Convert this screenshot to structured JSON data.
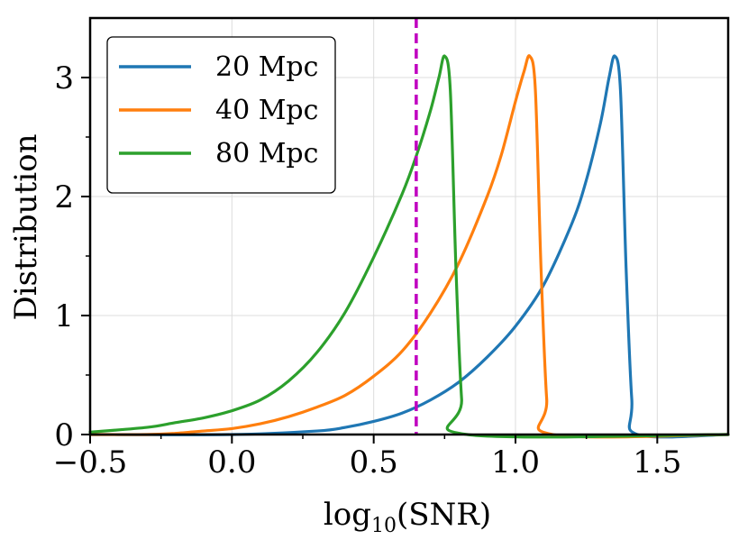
{
  "chart_data": {
    "type": "line",
    "xlabel": "log10(SNR)",
    "xlabel_base": "log",
    "xlabel_sub": "10",
    "xlabel_rest": "(SNR)",
    "ylabel": "Distribution",
    "xlim": [
      -0.5,
      1.75
    ],
    "ylim": [
      0,
      3.5
    ],
    "xticks": [
      -0.5,
      0.0,
      0.5,
      1.0,
      1.5
    ],
    "xtick_labels": [
      "−0.5",
      "0.0",
      "0.5",
      "1.0",
      "1.5"
    ],
    "yticks": [
      0,
      1,
      2,
      3
    ],
    "ytick_labels": [
      "0",
      "1",
      "2",
      "3"
    ],
    "x_minor_ticks": [
      -0.25,
      0.25,
      0.75,
      1.25
    ],
    "y_minor_ticks": [
      0.5,
      1.5,
      2.5
    ],
    "grid": true,
    "legend_position": "top-left",
    "threshold": {
      "x": 0.65,
      "color": "#c000c0",
      "style": "dashed"
    },
    "series": [
      {
        "name": "20 Mpc",
        "color": "#1f77b4",
        "x": [
          -0.5,
          0.0,
          0.3,
          0.4,
          0.5,
          0.6,
          0.7,
          0.8,
          0.9,
          1.0,
          1.1,
          1.2,
          1.25,
          1.3,
          1.33,
          1.35,
          1.37,
          1.39,
          1.41,
          1.43,
          1.75
        ],
        "y": [
          0.0,
          0.0,
          0.03,
          0.06,
          0.11,
          0.18,
          0.29,
          0.44,
          0.65,
          0.91,
          1.26,
          1.78,
          2.14,
          2.62,
          3.0,
          3.18,
          2.9,
          1.4,
          0.3,
          0.0,
          0.0
        ]
      },
      {
        "name": "40 Mpc",
        "color": "#ff7f0e",
        "x": [
          -0.5,
          -0.3,
          -0.2,
          -0.1,
          0.0,
          0.1,
          0.2,
          0.3,
          0.4,
          0.5,
          0.6,
          0.7,
          0.8,
          0.9,
          0.95,
          1.0,
          1.03,
          1.05,
          1.07,
          1.09,
          1.11,
          1.13,
          1.75
        ],
        "y": [
          0.0,
          0.0,
          0.01,
          0.03,
          0.05,
          0.09,
          0.15,
          0.23,
          0.33,
          0.49,
          0.7,
          1.02,
          1.44,
          2.0,
          2.35,
          2.8,
          3.05,
          3.18,
          2.9,
          1.4,
          0.3,
          0.0,
          0.0
        ]
      },
      {
        "name": "80 Mpc",
        "color": "#2ca02c",
        "x": [
          -0.5,
          -0.3,
          -0.2,
          -0.1,
          0.0,
          0.1,
          0.2,
          0.3,
          0.4,
          0.5,
          0.6,
          0.65,
          0.7,
          0.73,
          0.75,
          0.77,
          0.79,
          0.81,
          0.83,
          1.75
        ],
        "y": [
          0.02,
          0.06,
          0.1,
          0.14,
          0.2,
          0.29,
          0.45,
          0.69,
          1.03,
          1.49,
          2.02,
          2.34,
          2.72,
          3.0,
          3.18,
          2.9,
          1.4,
          0.3,
          0.0,
          0.0
        ]
      }
    ]
  }
}
